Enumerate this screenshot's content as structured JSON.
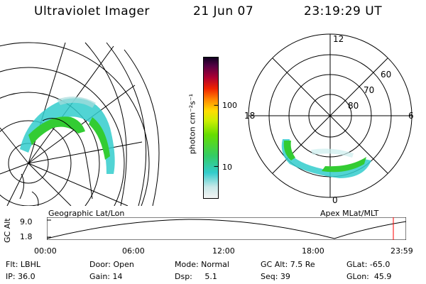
{
  "header": {
    "title": "Ultraviolet Imager",
    "date": "21 Jun 07",
    "time": "23:19:29 UT"
  },
  "colorbar": {
    "unit_label": "photon cm⁻²s⁻¹",
    "ticks": [
      "100",
      "10"
    ]
  },
  "polar": {
    "mlt_labels": {
      "top": "12",
      "left": "18",
      "right": "6",
      "bottom": "0"
    },
    "mlat_labels": [
      "60",
      "70",
      "80"
    ]
  },
  "projection_labels": {
    "geographic": "Geographic Lat/Lon",
    "apex": "Apex MLat/MLT"
  },
  "timeline": {
    "axis_label": "GC Alt",
    "y_max": "9.0",
    "y_min": "1.8",
    "time_ticks": [
      "00:00",
      "06:00",
      "12:00",
      "18:00",
      "23:59"
    ]
  },
  "footer": {
    "col1": [
      "Flt: LBHL",
      "IP: 36.0"
    ],
    "col2": [
      "Door: Open",
      "Gain: 14"
    ],
    "col3": [
      "Mode: Normal",
      "Dsp:     5.1"
    ],
    "col4": [
      "GC Alt: 7.5 Re",
      "Seq: 39"
    ],
    "col5": [
      "GLat: -65.0",
      "GLon:  45.9"
    ]
  },
  "colors": {
    "marker": "#ff0000",
    "aurora_green": "#33cc33",
    "aurora_cyan": "#33cccc"
  }
}
